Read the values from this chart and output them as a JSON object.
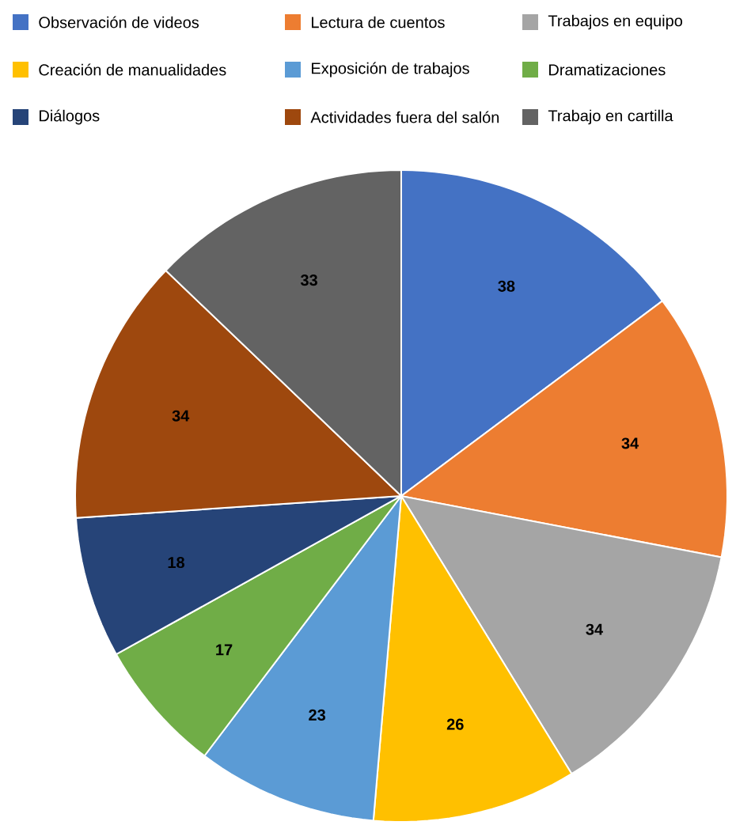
{
  "chart_data": {
    "type": "pie",
    "categories": [
      "Observación de videos",
      "Lectura de cuentos",
      "Trabajos en equipo",
      "Creación de manualidades",
      "Exposición de trabajos",
      "Dramatizaciones",
      "Diálogos",
      "Actividades fuera del salón",
      "Trabajo en cartilla"
    ],
    "values": [
      38,
      34,
      34,
      26,
      23,
      17,
      18,
      34,
      33
    ],
    "colors": [
      "#4472c4",
      "#ed7d31",
      "#a5a5a5",
      "#ffc000",
      "#5b9bd5",
      "#70ad47",
      "#264478",
      "#9e480e",
      "#636363"
    ],
    "data_labels": true,
    "legend": "top"
  }
}
